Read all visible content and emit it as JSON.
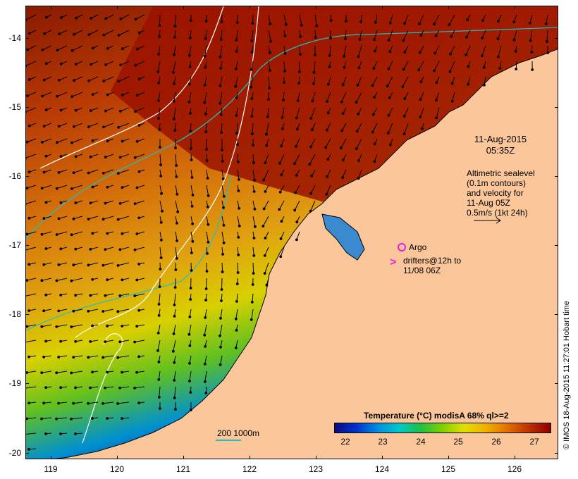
{
  "map": {
    "axes": {
      "lat_ticks": [
        "-14",
        "-15",
        "-16",
        "-17",
        "-18",
        "-19",
        "-20"
      ],
      "lon_ticks": [
        "119",
        "120",
        "121",
        "122",
        "123",
        "124",
        "125",
        "126"
      ]
    },
    "date": "11-Aug-2015",
    "time": "05:35Z",
    "sealevel_note": [
      "Altimetric sealevel",
      "(0.1m contours)",
      "and velocity for",
      "11-Aug 05Z",
      "0.5m/s (1kt 24h)"
    ],
    "argo_label": "Argo",
    "drifters_label": [
      "drifters@12h to",
      "11/08 06Z"
    ],
    "drifter_glyph": ">",
    "colorbar": {
      "title": "Temperature (°C) modisA 68% ql>=2",
      "ticks": [
        "22",
        "23",
        "24",
        "25",
        "26",
        "27"
      ]
    },
    "depth_scale": "200  1000m",
    "credit": "© IMOS 18-Aug-2015 11:27:01 Hobart time",
    "colors": {
      "land": "#fbc79a",
      "warm": "#9a1a00",
      "mid": "#d4700a",
      "cool": "#a8d000",
      "cold": "#0030b0",
      "contour_200m": "#20c0c0",
      "contour_1000m": "#ffffff",
      "arrows": "#000000"
    }
  }
}
